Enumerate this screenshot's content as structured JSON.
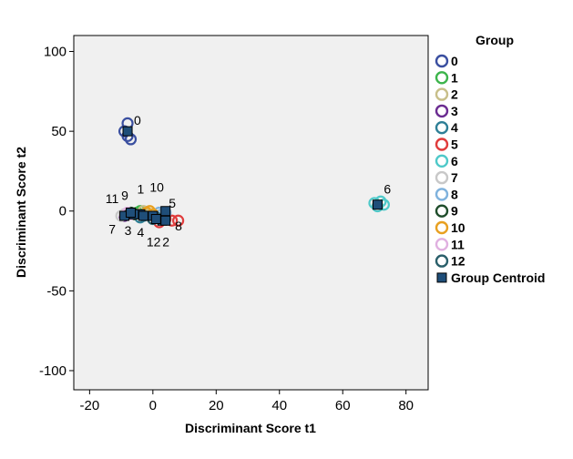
{
  "chart_data": {
    "type": "scatter",
    "xlabel": "Discriminant Score t1",
    "ylabel": "Discriminant Score t2",
    "xlim": [
      -25,
      87
    ],
    "ylim": [
      -112,
      110
    ],
    "xticks": [
      -20,
      0,
      20,
      40,
      60,
      80
    ],
    "yticks": [
      100,
      50,
      0,
      -50,
      -100
    ],
    "grid": false,
    "background": "#f0f0f0",
    "legend": {
      "title": "Group",
      "placement": "right",
      "centroid_label": "Group Centroid",
      "centroid_color": "#1f4e79"
    },
    "series": [
      {
        "name": "0",
        "color": "#3a4fa0",
        "points": [
          [
            -8,
            55
          ],
          [
            -8,
            47
          ],
          [
            -7,
            45
          ],
          [
            -9,
            50
          ]
        ]
      },
      {
        "name": "1",
        "color": "#3cb44b",
        "points": [
          [
            -5,
            -1
          ],
          [
            -3,
            -2
          ],
          [
            -4,
            0
          ]
        ]
      },
      {
        "name": "2",
        "color": "#c8bf8a",
        "points": [
          [
            -2,
            -1
          ],
          [
            -1,
            -2
          ],
          [
            -3,
            0
          ]
        ]
      },
      {
        "name": "3",
        "color": "#6b2c91",
        "points": [
          [
            -9,
            -3
          ],
          [
            -8,
            -2
          ]
        ]
      },
      {
        "name": "4",
        "color": "#2e7f96",
        "points": [
          [
            -4,
            -4
          ],
          [
            -3,
            -3
          ]
        ]
      },
      {
        "name": "5",
        "color": "#e03c3c",
        "points": [
          [
            6,
            -6
          ],
          [
            8,
            -6
          ],
          [
            4,
            -5
          ],
          [
            2,
            -7
          ]
        ]
      },
      {
        "name": "6",
        "color": "#4ec9c9",
        "points": [
          [
            70,
            5
          ],
          [
            71,
            3
          ],
          [
            73,
            4
          ],
          [
            72,
            6
          ]
        ]
      },
      {
        "name": "7",
        "color": "#c8c8c8",
        "points": [
          [
            -10,
            -3
          ],
          [
            -9,
            -2
          ]
        ]
      },
      {
        "name": "8",
        "color": "#7fb2dd",
        "points": [
          [
            3,
            -2
          ],
          [
            4,
            -1
          ],
          [
            2,
            -1
          ]
        ]
      },
      {
        "name": "9",
        "color": "#1f4d2b",
        "points": [
          [
            -7,
            -1
          ],
          [
            -6,
            -2
          ]
        ]
      },
      {
        "name": "10",
        "color": "#e8a020",
        "points": [
          [
            -2,
            -1
          ],
          [
            -1,
            0
          ],
          [
            0,
            -2
          ]
        ]
      },
      {
        "name": "11",
        "color": "#e0b0e0",
        "points": [
          [
            -8,
            -1
          ],
          [
            -7,
            -2
          ]
        ]
      },
      {
        "name": "12",
        "color": "#2a5f6a",
        "points": [
          [
            0,
            -5
          ],
          [
            1,
            -4
          ]
        ]
      }
    ],
    "centroids": [
      {
        "group": "0",
        "x": -8,
        "y": 50
      },
      {
        "group": "1",
        "x": -4,
        "y": -2
      },
      {
        "group": "2",
        "x": 3,
        "y": -6
      },
      {
        "group": "3",
        "x": -7,
        "y": -2
      },
      {
        "group": "4",
        "x": -3,
        "y": -3
      },
      {
        "group": "5",
        "x": 4,
        "y": 0
      },
      {
        "group": "6",
        "x": 71,
        "y": 4
      },
      {
        "group": "7",
        "x": -9,
        "y": -3
      },
      {
        "group": "8",
        "x": 4,
        "y": -6
      },
      {
        "group": "9",
        "x": -6,
        "y": -2
      },
      {
        "group": "10",
        "x": 0,
        "y": -3
      },
      {
        "group": "11",
        "x": -7,
        "y": -1
      },
      {
        "group": "12",
        "x": 1,
        "y": -5
      }
    ],
    "point_labels": [
      {
        "text": "0",
        "x": -6,
        "y": 54
      },
      {
        "text": "6",
        "x": 73,
        "y": 11
      },
      {
        "text": "11",
        "x": -15,
        "y": 5
      },
      {
        "text": "9",
        "x": -10,
        "y": 7
      },
      {
        "text": "1",
        "x": -5,
        "y": 11
      },
      {
        "text": "10",
        "x": -1,
        "y": 12
      },
      {
        "text": "5",
        "x": 5,
        "y": 2
      },
      {
        "text": "7",
        "x": -14,
        "y": -14
      },
      {
        "text": "3",
        "x": -9,
        "y": -15
      },
      {
        "text": "4",
        "x": -5,
        "y": -16
      },
      {
        "text": "12",
        "x": -2,
        "y": -22
      },
      {
        "text": "2",
        "x": 3,
        "y": -22
      },
      {
        "text": "8",
        "x": 7,
        "y": -12
      }
    ]
  }
}
